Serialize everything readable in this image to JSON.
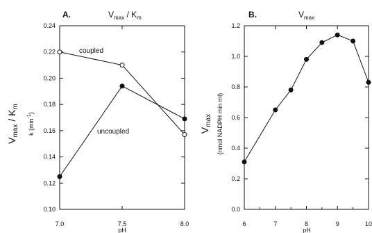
{
  "chart_data": [
    {
      "type": "line",
      "panel_letter": "A.",
      "title": "Vmax / Km",
      "ylabel_main": "Vmax / Km",
      "ylabel_sub": "k (min-1)",
      "xlabel": "pH",
      "xlim": [
        7.0,
        8.0
      ],
      "ylim": [
        0.1,
        0.24
      ],
      "x_ticks": [
        "7.0",
        "7.5",
        "8.0"
      ],
      "y_ticks": [
        "0.10",
        "0.12",
        "0.14",
        "0.16",
        "0.18",
        "0.20",
        "0.22",
        "0.24"
      ],
      "grid": false,
      "series": [
        {
          "name": "coupled",
          "marker": "open-circle",
          "x": [
            7.0,
            7.5,
            8.0
          ],
          "values": [
            0.22,
            0.21,
            0.157
          ]
        },
        {
          "name": "uncoupled",
          "marker": "filled-circle",
          "x": [
            7.0,
            7.5,
            8.0
          ],
          "values": [
            0.125,
            0.194,
            0.169
          ]
        }
      ]
    },
    {
      "type": "line",
      "panel_letter": "B.",
      "title": "Vmax",
      "ylabel_main": "Vmax",
      "ylabel_sub": "(nmol NADPH  min  ml)",
      "xlabel": "pH",
      "xlim": [
        6,
        10
      ],
      "ylim": [
        0.0,
        1.2
      ],
      "x_ticks": [
        "6",
        "7",
        "8",
        "9",
        "10"
      ],
      "y_ticks": [
        "0.0",
        "0.2",
        "0.4",
        "0.6",
        "0.8",
        "1.0",
        "1.2"
      ],
      "grid": false,
      "series": [
        {
          "name": "",
          "marker": "filled-circle",
          "x": [
            6.0,
            7.0,
            7.5,
            8.0,
            8.5,
            9.0,
            9.5,
            10.0
          ],
          "values": [
            0.31,
            0.65,
            0.78,
            0.98,
            1.09,
            1.14,
            1.1,
            0.83
          ]
        }
      ]
    }
  ]
}
